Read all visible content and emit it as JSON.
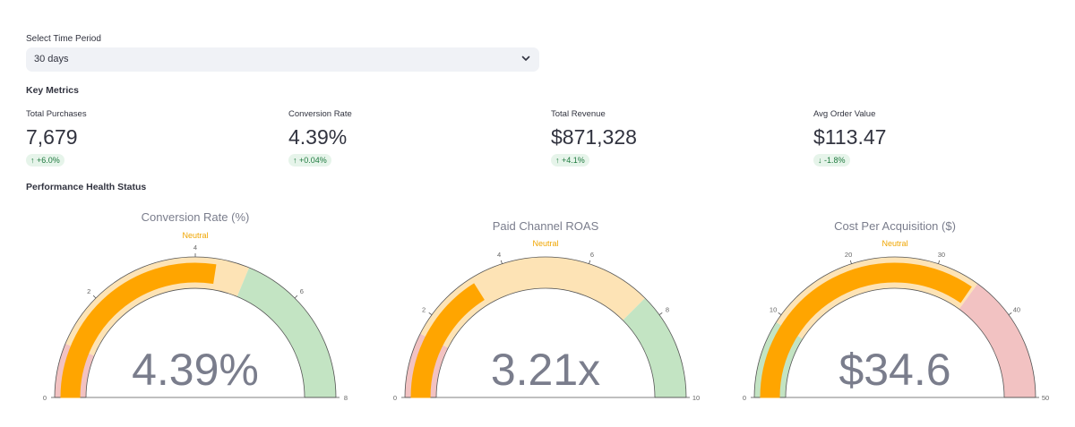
{
  "time_period": {
    "label": "Select Time Period",
    "selected": "30 days"
  },
  "key_metrics": {
    "title": "Key Metrics",
    "items": [
      {
        "label": "Total Purchases",
        "value": "7,679",
        "delta": "+6.0%",
        "direction": "up"
      },
      {
        "label": "Conversion Rate",
        "value": "4.39%",
        "delta": "+0.04%",
        "direction": "up"
      },
      {
        "label": "Total Revenue",
        "value": "$871,328",
        "delta": "+4.1%",
        "direction": "up"
      },
      {
        "label": "Avg Order Value",
        "value": "$113.47",
        "delta": "-1.8%",
        "direction": "down"
      }
    ]
  },
  "health": {
    "title": "Performance Health Status"
  },
  "gauges": [
    {
      "title": "Conversion Rate (%)",
      "status": "Neutral",
      "display": "4.39%",
      "value": 4.39,
      "min": 0,
      "max": 8,
      "ticks": [
        0,
        2,
        4,
        6,
        8
      ],
      "bands": [
        {
          "from": 0,
          "to": 1,
          "color": "#f2c2c2"
        },
        {
          "from": 1,
          "to": 5,
          "color": "#fde3b5"
        },
        {
          "from": 5,
          "to": 8,
          "color": "#c3e4c3"
        }
      ]
    },
    {
      "title": "Paid Channel ROAS",
      "status": "Neutral",
      "display": "3.21x",
      "value": 3.21,
      "min": 0,
      "max": 10,
      "ticks": [
        0,
        2,
        4,
        6,
        8,
        10
      ],
      "bands": [
        {
          "from": 0,
          "to": 1.5,
          "color": "#f2c2c2"
        },
        {
          "from": 1.5,
          "to": 7.5,
          "color": "#fde3b5"
        },
        {
          "from": 7.5,
          "to": 10,
          "color": "#c3e4c3"
        }
      ]
    },
    {
      "title": "Cost Per Acquisition ($)",
      "status": "Neutral",
      "display": "$34.6",
      "value": 34.6,
      "min": 0,
      "max": 50,
      "ticks": [
        0,
        10,
        20,
        30,
        40,
        50
      ],
      "bands": [
        {
          "from": 0,
          "to": 9,
          "color": "#c3e4c3"
        },
        {
          "from": 9,
          "to": 35,
          "color": "#fde3b5"
        },
        {
          "from": 35,
          "to": 50,
          "color": "#f2c2c2"
        }
      ]
    }
  ],
  "colors": {
    "bar": "#ffa500",
    "status": "#f0a500",
    "number": "#7a7d8c",
    "title": "#7a7d8c"
  }
}
